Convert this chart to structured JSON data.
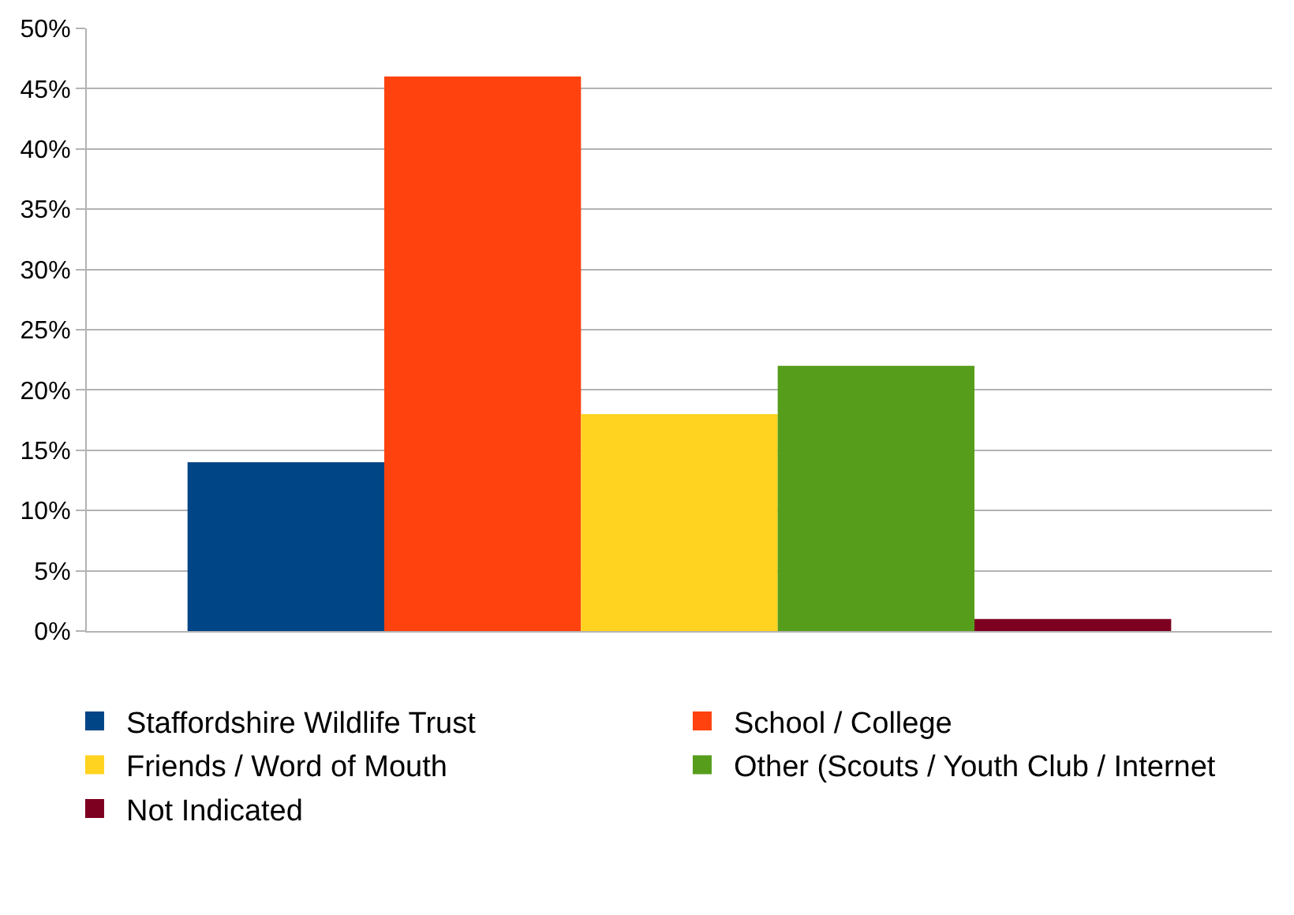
{
  "chart_data": {
    "type": "bar",
    "categories": [
      null
    ],
    "series": [
      {
        "name": "Staffordshire Wildlife Trust",
        "color": "#004586",
        "values": [
          14
        ]
      },
      {
        "name": "School / College",
        "color": "#ff420e",
        "values": [
          46
        ]
      },
      {
        "name": "Friends / Word of Mouth",
        "color": "#ffd320",
        "values": [
          18
        ]
      },
      {
        "name": "Other (Scouts / Youth Club / Internet",
        "color": "#579d1c",
        "values": [
          22
        ]
      },
      {
        "name": "Not Indicated",
        "color": "#7e0021",
        "values": [
          1
        ]
      }
    ],
    "ylim": [
      0,
      50
    ],
    "yticks": [
      {
        "value": 0,
        "label": "0%"
      },
      {
        "value": 5,
        "label": "5%"
      },
      {
        "value": 10,
        "label": "10%"
      },
      {
        "value": 15,
        "label": "15%"
      },
      {
        "value": 20,
        "label": "20%"
      },
      {
        "value": 25,
        "label": "25%"
      },
      {
        "value": 30,
        "label": "30%"
      },
      {
        "value": 35,
        "label": "35%"
      },
      {
        "value": 40,
        "label": "40%"
      },
      {
        "value": 45,
        "label": "45%"
      },
      {
        "value": 50,
        "label": "50%"
      }
    ],
    "grid": "y",
    "legend": "bottom"
  }
}
